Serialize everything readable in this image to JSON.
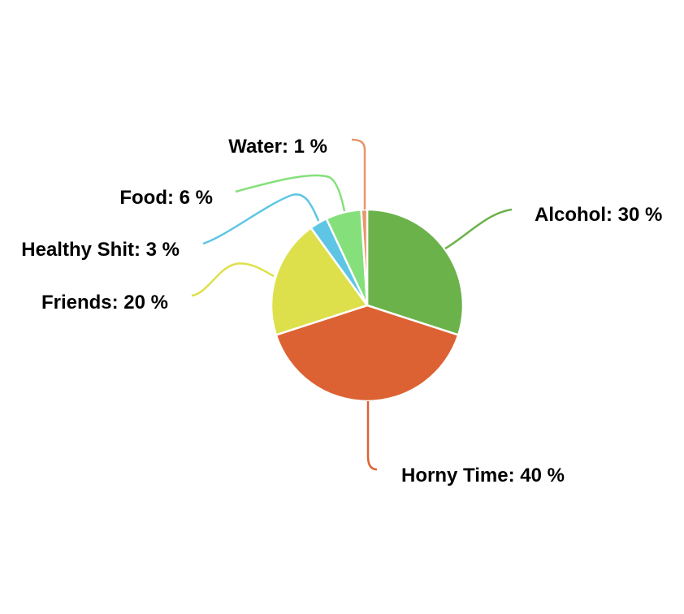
{
  "chart_data": {
    "type": "pie",
    "start_angle_deg": 0,
    "direction": "clockwise",
    "slices": [
      {
        "label": "Alcohol",
        "value": 30,
        "color": "#6bb24a",
        "text": "Alcohol: 30 %"
      },
      {
        "label": "Horny Time",
        "value": 40,
        "color": "#dd6233",
        "text": "Horny Time: 40 %"
      },
      {
        "label": "Friends",
        "value": 20,
        "color": "#dde04b",
        "text": "Friends: 20 %"
      },
      {
        "label": "Healthy Shit",
        "value": 3,
        "color": "#5ec6e4",
        "text": "Healthy Shit: 3 %"
      },
      {
        "label": "Food",
        "value": 6,
        "color": "#85e07c",
        "text": "Food: 6 %"
      },
      {
        "label": "Water",
        "value": 1,
        "color": "#e8956a",
        "text": "Water: 1 %"
      }
    ],
    "legend": "none"
  }
}
